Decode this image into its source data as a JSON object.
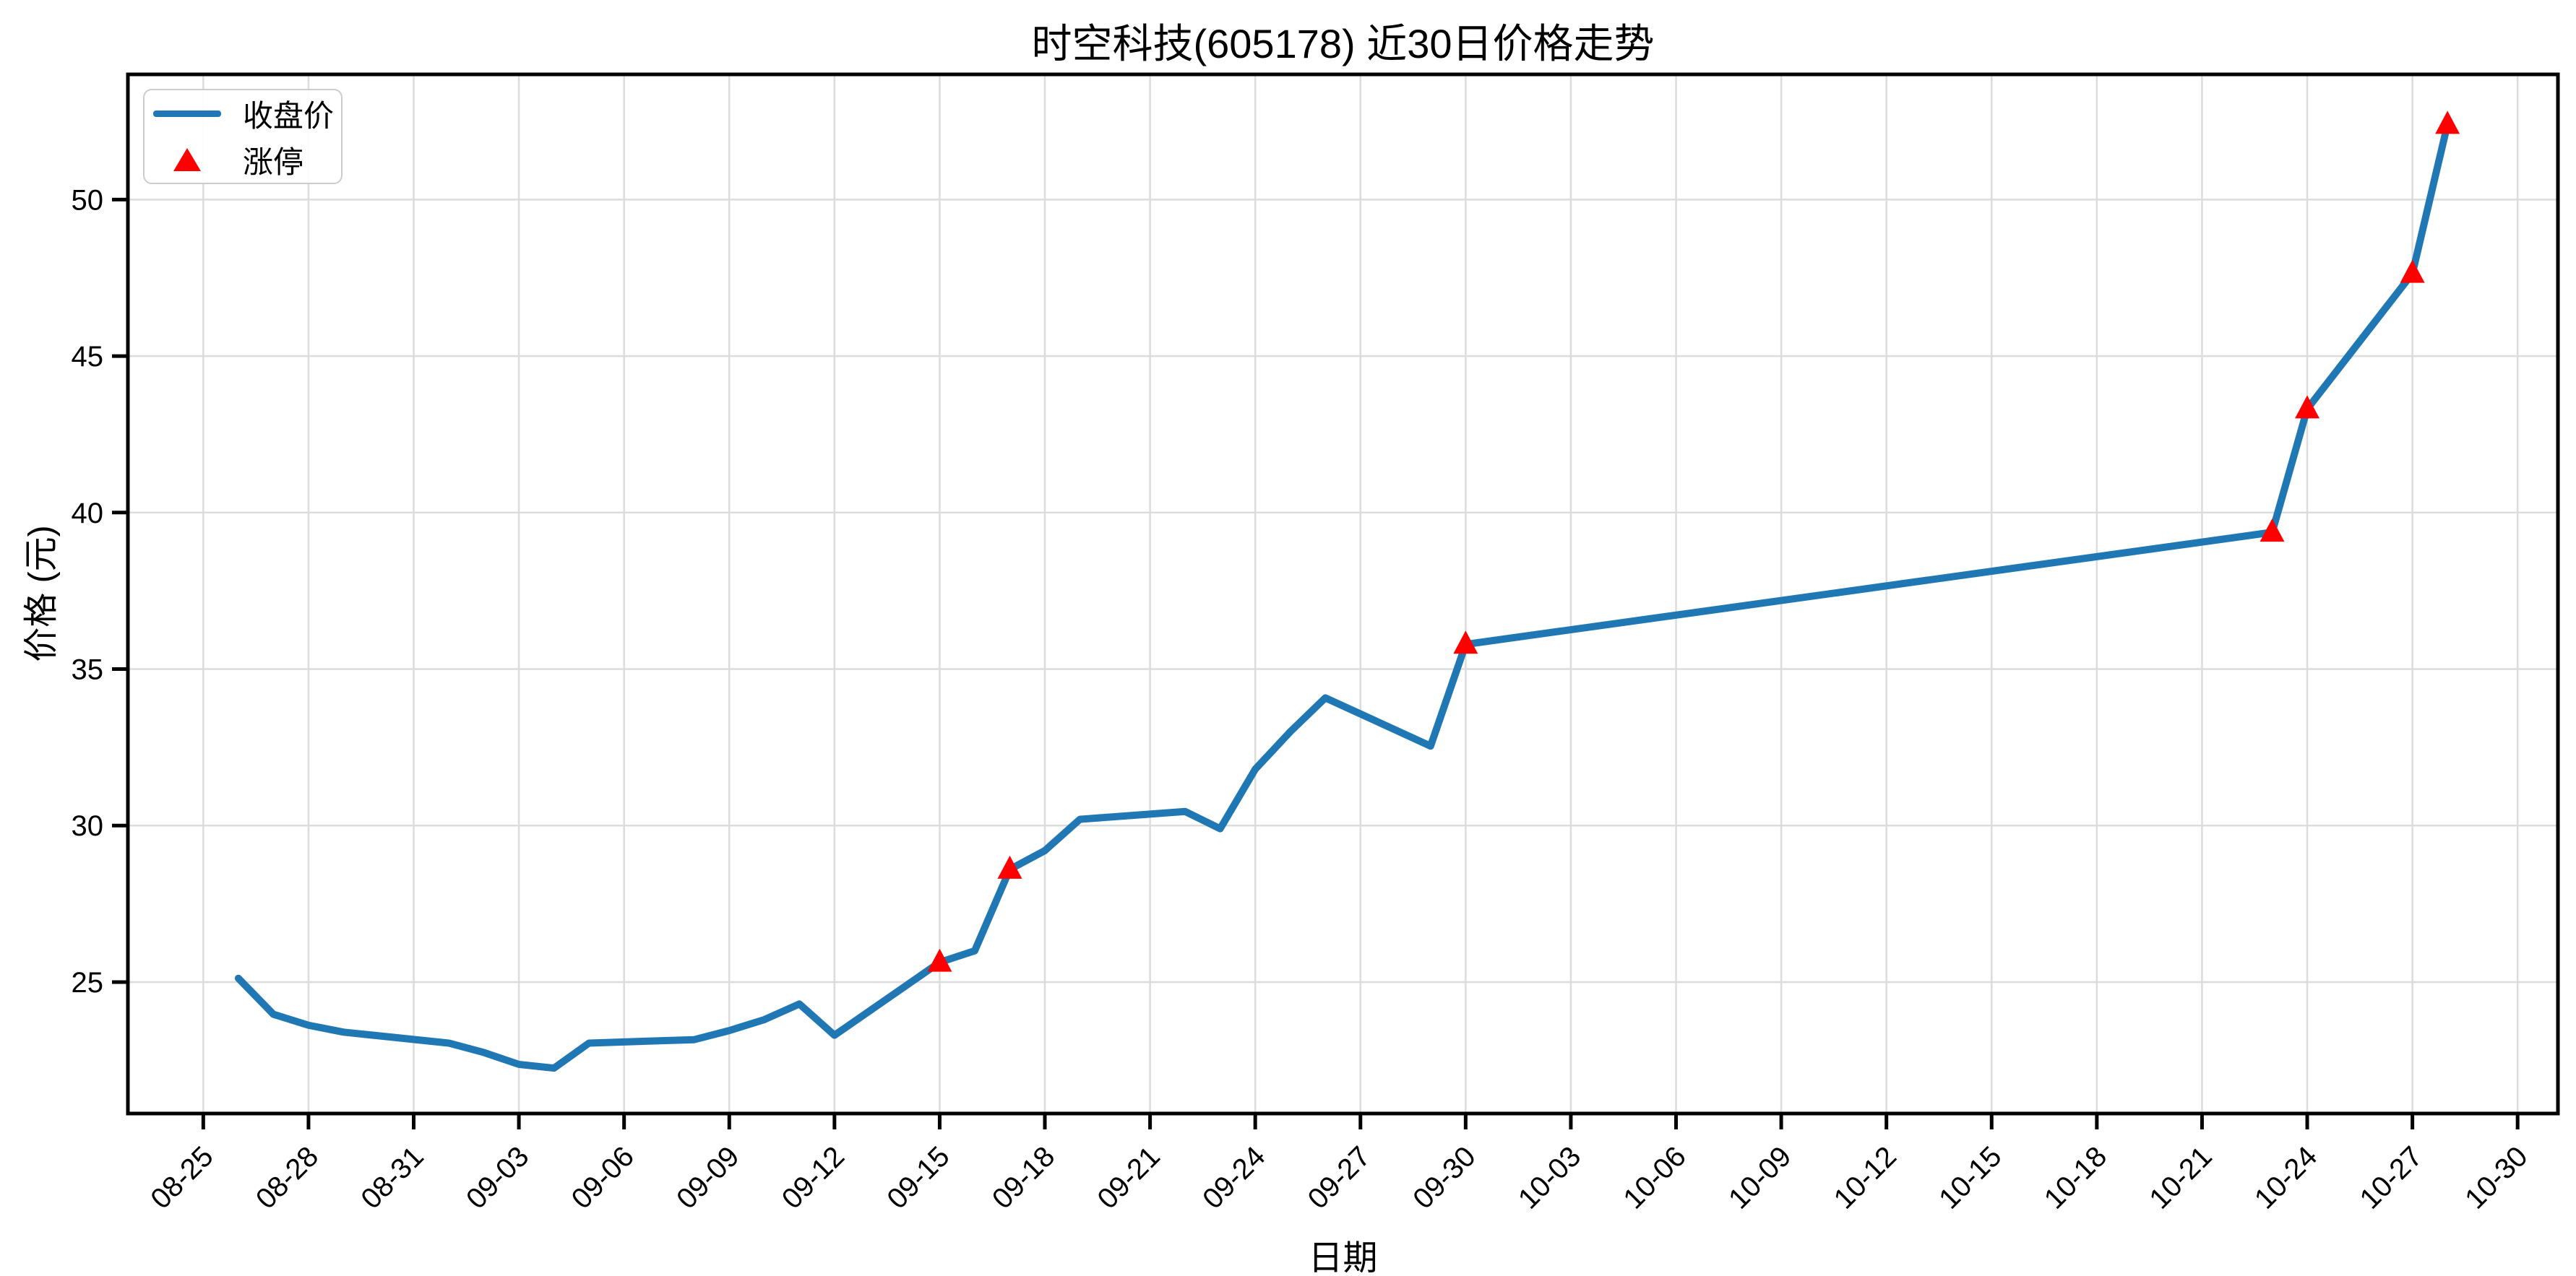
{
  "chart_data": {
    "type": "line",
    "title": "时空科技(605178) 近30日价格走势",
    "xlabel": "日期",
    "ylabel": "价格 (元)",
    "grid": true,
    "legend_position": "upper-left",
    "line_color": "#1f77b4",
    "marker_color": "#ff0000",
    "grid_color": "#dcdcdc",
    "legend": [
      {
        "label": "收盘价",
        "marker": "line",
        "color": "#1f77b4"
      },
      {
        "label": "涨停",
        "marker": "triangle-up",
        "color": "#ff0000"
      }
    ],
    "series": [
      {
        "name": "收盘价",
        "dates": [
          "08-26",
          "08-27",
          "08-28",
          "08-29",
          "09-01",
          "09-02",
          "09-03",
          "09-04",
          "09-05",
          "09-08",
          "09-09",
          "09-10",
          "09-11",
          "09-12",
          "09-15",
          "09-16",
          "09-17",
          "09-18",
          "09-19",
          "09-22",
          "09-23",
          "09-24",
          "09-25",
          "09-26",
          "09-29",
          "09-30",
          "10-23",
          "10-24",
          "10-27",
          "10-28"
        ],
        "values": [
          25.12,
          23.97,
          23.62,
          23.4,
          23.05,
          22.75,
          22.37,
          22.25,
          23.05,
          23.16,
          23.45,
          23.8,
          24.3,
          23.3,
          25.63,
          26.0,
          28.6,
          29.2,
          30.2,
          30.45,
          29.9,
          31.8,
          33.0,
          34.08,
          32.54,
          35.79,
          39.37,
          43.31,
          47.64,
          52.4
        ],
        "limit_up_dates": [
          "09-15",
          "09-17",
          "09-30",
          "10-23",
          "10-24",
          "10-27",
          "10-28"
        ]
      }
    ],
    "x_ticks": [
      "08-25",
      "08-28",
      "08-31",
      "09-03",
      "09-06",
      "09-09",
      "09-12",
      "09-15",
      "09-18",
      "09-21",
      "09-24",
      "09-27",
      "09-30",
      "10-03",
      "10-06",
      "10-09",
      "10-12",
      "10-15",
      "10-18",
      "10-21",
      "10-24",
      "10-27",
      "10-30"
    ],
    "y_ticks": [
      25,
      30,
      35,
      40,
      45,
      50
    ],
    "ylim": [
      20.8,
      54.0
    ],
    "x_margin_days": 3.15
  }
}
